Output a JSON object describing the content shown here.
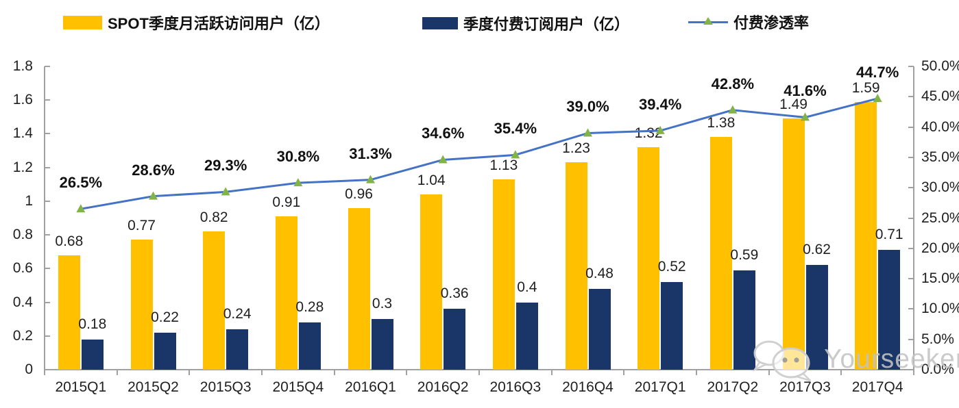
{
  "legend": [
    {
      "label": "SPOT季度月活跃访问用户（亿）",
      "swatch_color": "#FFC000"
    },
    {
      "label": "季度付费订阅用户（亿）",
      "swatch_color": "#1A3668"
    },
    {
      "label": "付费渗透率",
      "line_color": "#4472C4",
      "marker_color": "#82B347"
    }
  ],
  "watermark": {
    "text": "Yourseeker",
    "icon": "wechat-icon"
  },
  "colors": {
    "bar_mau": "#FFC000",
    "bar_subs": "#1A3668",
    "line": "#4472C4",
    "marker": "#82B347",
    "axis": "#A0A0A0",
    "text": "#1F1F1F",
    "watermark": "#C3C3C3"
  },
  "chart_data": {
    "type": "bar",
    "subtype": "grouped-bar-with-line",
    "categories": [
      "2015Q1",
      "2015Q2",
      "2015Q3",
      "2015Q4",
      "2016Q1",
      "2016Q2",
      "2016Q3",
      "2016Q4",
      "2017Q1",
      "2017Q2",
      "2017Q3",
      "2017Q4"
    ],
    "series": [
      {
        "name": "SPOT季度月活跃访问用户（亿）",
        "type": "bar",
        "axis": "left",
        "color": "#FFC000",
        "values": [
          0.68,
          0.77,
          0.82,
          0.91,
          0.96,
          1.04,
          1.13,
          1.23,
          1.32,
          1.38,
          1.49,
          1.59
        ],
        "labels": [
          "0.68",
          "0.77",
          "0.82",
          "0.91",
          "0.96",
          "1.04",
          "1.13",
          "1.23",
          "1.32",
          "1.38",
          "1.49",
          "1.59"
        ]
      },
      {
        "name": "季度付费订阅用户（亿）",
        "type": "bar",
        "axis": "left",
        "color": "#1A3668",
        "values": [
          0.18,
          0.22,
          0.24,
          0.28,
          0.3,
          0.36,
          0.4,
          0.48,
          0.52,
          0.59,
          0.62,
          0.71
        ],
        "labels": [
          "0.18",
          "0.22",
          "0.24",
          "0.28",
          "0.3",
          "0.36",
          "0.4",
          "0.48",
          "0.52",
          "0.59",
          "0.62",
          "0.71"
        ]
      },
      {
        "name": "付费渗透率",
        "type": "line",
        "axis": "right",
        "color": "#4472C4",
        "marker": "triangle",
        "marker_color": "#82B347",
        "values": [
          26.5,
          28.6,
          29.3,
          30.8,
          31.3,
          34.6,
          35.4,
          39.0,
          39.4,
          42.8,
          41.6,
          44.7
        ],
        "labels": [
          "26.5%",
          "28.6%",
          "29.3%",
          "30.8%",
          "31.3%",
          "34.6%",
          "35.4%",
          "39.0%",
          "39.4%",
          "42.8%",
          "41.6%",
          "44.7%"
        ]
      }
    ],
    "left_axis": {
      "min": 0,
      "max": 1.8,
      "step": 0.2,
      "ticks": [
        "0",
        "0.2",
        "0.4",
        "0.6",
        "0.8",
        "1",
        "1.2",
        "1.4",
        "1.6",
        "1.8"
      ]
    },
    "right_axis": {
      "min": 0,
      "max": 50,
      "step": 5,
      "ticks": [
        "0.0%",
        "5.0%",
        "10.0%",
        "15.0%",
        "20.0%",
        "25.0%",
        "30.0%",
        "35.0%",
        "40.0%",
        "45.0%",
        "50.0%"
      ]
    },
    "grid": false,
    "legend_position": "top",
    "title": ""
  }
}
